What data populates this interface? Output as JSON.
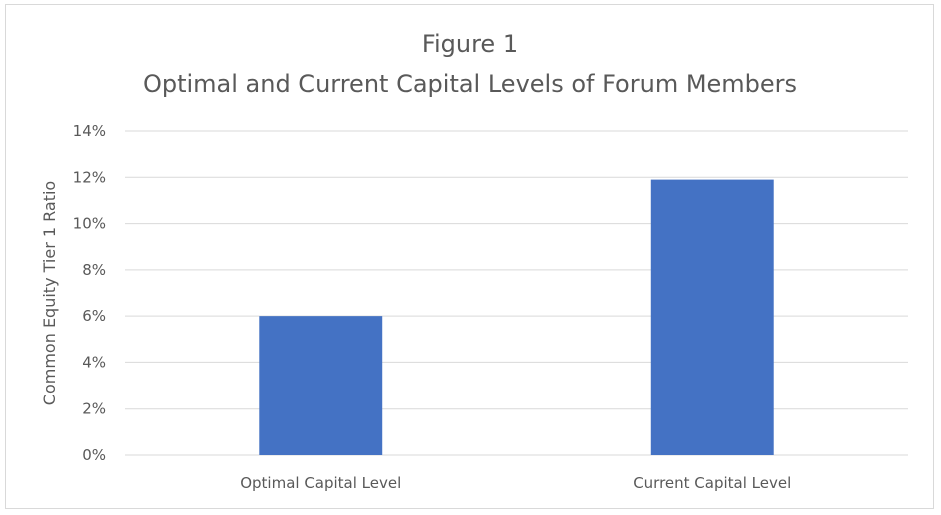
{
  "chart_data": {
    "type": "bar",
    "title": "Figure 1",
    "subtitle": "Optimal and Current Capital Levels of Forum Members",
    "xlabel": "",
    "ylabel": "Common Equity Tier 1 Ratio",
    "categories": [
      "Optimal Capital Level",
      "Current Capital Level"
    ],
    "values": [
      6.0,
      11.9
    ],
    "ylim": [
      0,
      14
    ],
    "y_ticks": [
      0,
      2,
      4,
      6,
      8,
      10,
      12,
      14
    ],
    "y_tick_labels": [
      "0%",
      "2%",
      "4%",
      "6%",
      "8%",
      "10%",
      "12%",
      "14%"
    ],
    "grid": true,
    "legend": "none",
    "bar_color": "#4472c4",
    "gridline_color": "#d9d9d9",
    "text_color": "#595959"
  }
}
